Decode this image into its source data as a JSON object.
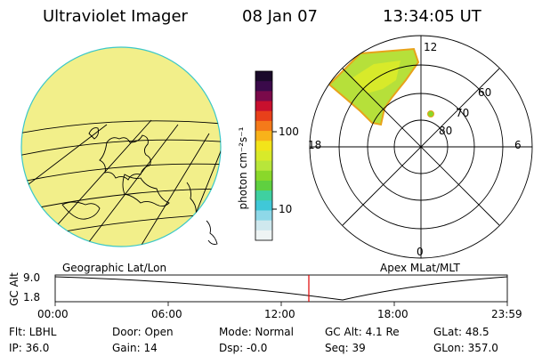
{
  "header": {
    "title": "Ultraviolet Imager",
    "date": "08 Jan 07",
    "time": "13:34:05 UT"
  },
  "colorbar": {
    "unit_label": "photon cm⁻²s⁻¹",
    "ticks": [
      "100",
      "10"
    ],
    "colors": [
      "#1a0a2a",
      "#3a0a4a",
      "#7a0a4a",
      "#c8102e",
      "#e8401a",
      "#f47a1a",
      "#f8b21a",
      "#f2e41a",
      "#d8ea2a",
      "#b8e63a",
      "#8ad82a",
      "#5fd040",
      "#3fd0a0",
      "#40c8d8",
      "#8ed8e8",
      "#cfe8ee",
      "#eef4f4"
    ]
  },
  "left_panel": {
    "label": "Geographic Lat/Lon",
    "disk_color": "#f2ef8a"
  },
  "right_panel": {
    "label": "Apex MLat/MLT",
    "mlt_labels": {
      "top": "12",
      "left": "18",
      "right": "6",
      "bottom": "0"
    },
    "lat_labels": [
      "60",
      "70",
      "80"
    ]
  },
  "timeline": {
    "y_axis_label": "GC Alt",
    "y_ticks": [
      "9.0",
      "1.8"
    ],
    "x_ticks": [
      "00:00",
      "06:00",
      "12:00",
      "18:00",
      "23:59"
    ],
    "current_marker_color": "#e00000"
  },
  "info": {
    "flt": "Flt: LBHL",
    "ip": "IP: 36.0",
    "door": "Door: Open",
    "gain": "Gain: 14",
    "mode": "Mode: Normal",
    "dsp": "Dsp:    -0.0",
    "gc_alt": "GC Alt: 4.1 Re",
    "seq": "Seq: 39",
    "glat": "GLat:   48.5",
    "glon": "GLon: 357.0"
  }
}
